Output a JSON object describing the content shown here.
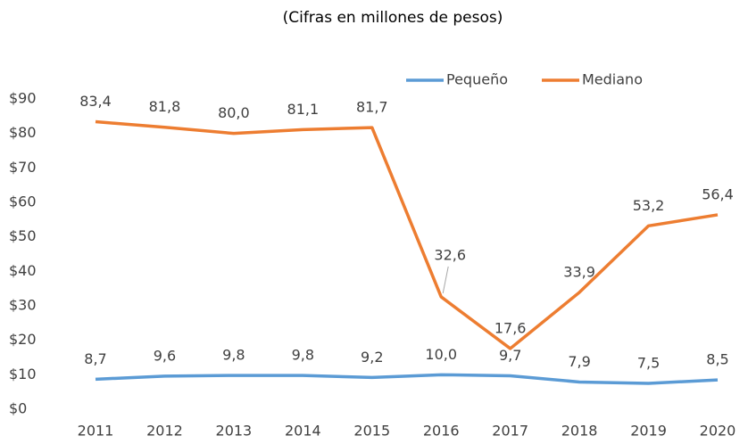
{
  "chart_data": {
    "type": "line",
    "title": "(Cifras en millones de pesos)",
    "categories": [
      "2011",
      "2012",
      "2013",
      "2014",
      "2015",
      "2016",
      "2017",
      "2018",
      "2019",
      "2020"
    ],
    "series": [
      {
        "name": "Pequeño",
        "color": "#5b9bd5",
        "values": [
          8.7,
          9.6,
          9.8,
          9.8,
          9.2,
          10.0,
          9.7,
          7.9,
          7.5,
          8.5
        ],
        "value_labels": [
          "8,7",
          "9,6",
          "9,8",
          "9,8",
          "9,2",
          "10,0",
          "9,7",
          "7,9",
          "7,5",
          "8,5"
        ]
      },
      {
        "name": "Mediano",
        "color": "#ed7d31",
        "values": [
          83.4,
          81.8,
          80.0,
          81.1,
          81.7,
          32.6,
          17.6,
          33.9,
          53.2,
          56.4
        ],
        "value_labels": [
          "83,4",
          "81,8",
          "80,0",
          "81,1",
          "81,7",
          "32,6",
          "17,6",
          "33,9",
          "53,2",
          "56,4"
        ]
      }
    ],
    "ylim": [
      0,
      90
    ],
    "yticks": [
      {
        "value": 0,
        "label": "$0"
      },
      {
        "value": 10,
        "label": "$10"
      },
      {
        "value": 20,
        "label": "$20"
      },
      {
        "value": 30,
        "label": "$30"
      },
      {
        "value": 40,
        "label": "$40"
      },
      {
        "value": 50,
        "label": "$50"
      },
      {
        "value": 60,
        "label": "$60"
      },
      {
        "value": 70,
        "label": "$70"
      },
      {
        "value": 80,
        "label": "$80"
      },
      {
        "value": 90,
        "label": "$90"
      }
    ],
    "grid": false,
    "legend": "top"
  }
}
